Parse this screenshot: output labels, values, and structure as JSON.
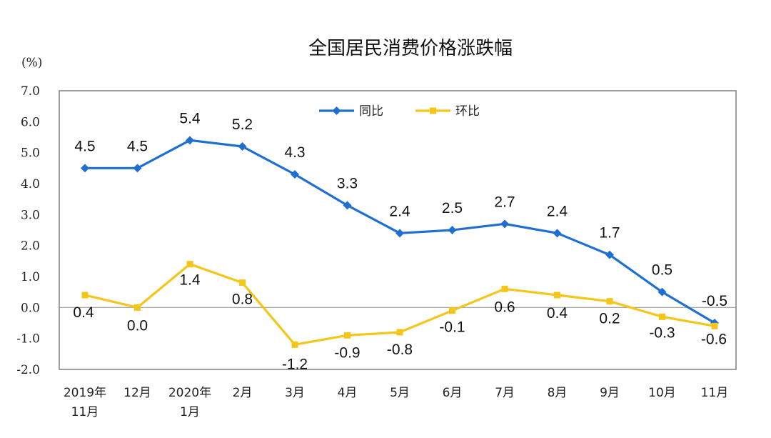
{
  "chart_data": {
    "type": "line",
    "title": "全国居民消费价格涨跌幅",
    "unit_label": "(%)",
    "ylim": [
      -2.0,
      7.0
    ],
    "yticks": [
      "7.0",
      "6.0",
      "5.0",
      "4.0",
      "3.0",
      "2.0",
      "1.0",
      "0.0",
      "-1.0",
      "-2.0"
    ],
    "categories": [
      [
        "2019年",
        "11月"
      ],
      [
        "12月"
      ],
      [
        "2020年",
        "1月"
      ],
      [
        "2月"
      ],
      [
        "3月"
      ],
      [
        "4月"
      ],
      [
        "5月"
      ],
      [
        "6月"
      ],
      [
        "7月"
      ],
      [
        "8月"
      ],
      [
        "9月"
      ],
      [
        "10月"
      ],
      [
        "11月"
      ]
    ],
    "series": [
      {
        "name": "同比",
        "color": "#1f6fd1",
        "marker": "diamond",
        "values": [
          4.5,
          4.5,
          5.4,
          5.2,
          4.3,
          3.3,
          2.4,
          2.5,
          2.7,
          2.4,
          1.7,
          0.5,
          -0.5
        ],
        "labels": [
          "4.5",
          "4.5",
          "5.4",
          "5.2",
          "4.3",
          "3.3",
          "2.4",
          "2.5",
          "2.7",
          "2.4",
          "1.7",
          "0.5",
          "-0.5"
        ]
      },
      {
        "name": "环比",
        "color": "#f5c518",
        "marker": "square",
        "values": [
          0.4,
          0.0,
          1.4,
          0.8,
          -1.2,
          -0.9,
          -0.8,
          -0.1,
          0.6,
          0.4,
          0.2,
          -0.3,
          -0.6
        ],
        "labels": [
          "0.4",
          "0.0",
          "1.4",
          "0.8",
          "-1.2",
          "-0.9",
          "-0.8",
          "-0.1",
          "0.6",
          "0.4",
          "0.2",
          "-0.3",
          "-0.6"
        ]
      }
    ],
    "legend": "top-center",
    "grid": false
  }
}
